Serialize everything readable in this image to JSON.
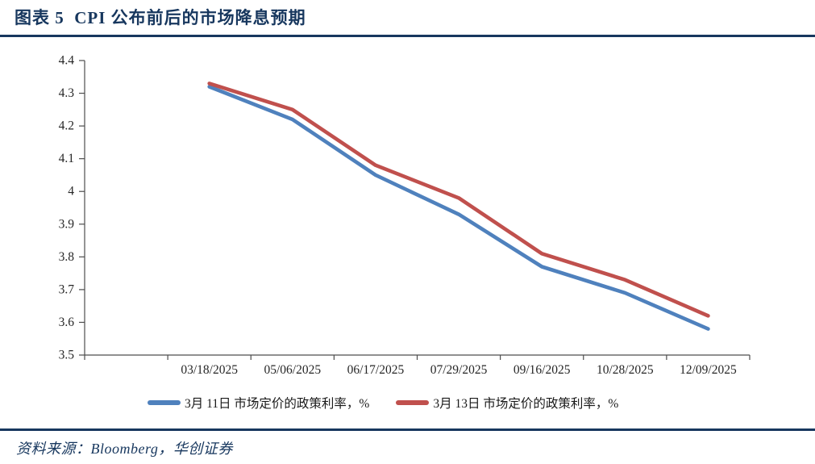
{
  "figure": {
    "title": "图表 5  CPI 公布前后的市场降息预期",
    "source": "资料来源：Bloomberg，华创证券"
  },
  "colors": {
    "accent_navy": "#17375E",
    "series_blue": "#4F81BD",
    "series_red": "#C0504D",
    "axis_text": "#262626"
  },
  "chart_data": {
    "type": "line",
    "title": "图表 5  CPI 公布前后的市场降息预期",
    "categories": [
      "03/18/2025",
      "05/06/2025",
      "06/17/2025",
      "07/29/2025",
      "09/16/2025",
      "10/28/2025",
      "12/09/2025"
    ],
    "series": [
      {
        "name": "3月 11日 市场定价的政策利率，%",
        "color": "#4F81BD",
        "values": [
          4.32,
          4.22,
          4.05,
          3.93,
          3.77,
          3.69,
          3.58
        ]
      },
      {
        "name": "3月 13日 市场定价的政策利率，%",
        "color": "#C0504D",
        "values": [
          4.33,
          4.25,
          4.08,
          3.98,
          3.81,
          3.73,
          3.62
        ]
      }
    ],
    "xlabel": "",
    "ylabel": "",
    "ylim": [
      3.5,
      4.4
    ],
    "ytick_labels": [
      "3.5",
      "3.6",
      "3.7",
      "3.8",
      "3.9",
      "4",
      "4.1",
      "4.2",
      "4.3",
      "4.4"
    ],
    "grid": false,
    "legend_position": "bottom",
    "leading_empty_slots": 1
  }
}
